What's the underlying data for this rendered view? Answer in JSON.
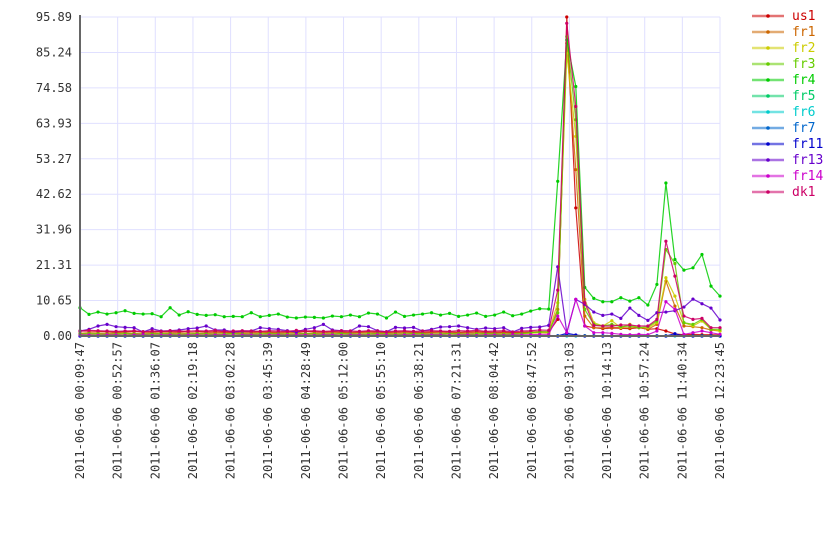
{
  "chart_data": {
    "type": "line",
    "title": "",
    "xlabel": "",
    "ylabel": "",
    "ylim": [
      0,
      95.89
    ],
    "grid": true,
    "legend_position": "right",
    "y_ticks": [
      "0.00",
      "10.65",
      "21.31",
      "31.96",
      "42.62",
      "53.27",
      "63.93",
      "74.58",
      "85.24",
      "95.89"
    ],
    "x_ticks": [
      "2011-06-06 00:09:47",
      "2011-06-06 00:52:57",
      "2011-06-06 01:36:07",
      "2011-06-06 02:19:18",
      "2011-06-06 03:02:28",
      "2011-06-06 03:45:39",
      "2011-06-06 04:28:49",
      "2011-06-06 05:12:00",
      "2011-06-06 05:55:10",
      "2011-06-06 06:38:21",
      "2011-06-06 07:21:31",
      "2011-06-06 08:04:42",
      "2011-06-06 08:47:52",
      "2011-06-06 09:31:03",
      "2011-06-06 10:14:13",
      "2011-06-06 10:57:24",
      "2011-06-06 11:40:34",
      "2011-06-06 12:23:45"
    ],
    "series": [
      {
        "name": "us1",
        "color": "#cc0000",
        "values": [
          1.5,
          1.5,
          1.4,
          1.3,
          1.2,
          1.3,
          1.4,
          1.3,
          1.2,
          1.4,
          1.3,
          1.2,
          1.5,
          1.4,
          1.2,
          1.3,
          1.2,
          1.1,
          1.3,
          1.2,
          1.3,
          1.2,
          1.1,
          1.3,
          1.2,
          1.4,
          1.3,
          1.2,
          1.3,
          1.2,
          1.1,
          1.2,
          1.3,
          1.2,
          1.1,
          1.2,
          1.3,
          1.2,
          1.1,
          1.2,
          1.3,
          1.2,
          1.1,
          1.2,
          1.3,
          1.2,
          1.1,
          1.2,
          1.0,
          1.1,
          1.2,
          1.3,
          1.2,
          5,
          95.89,
          38.5,
          3,
          2.5,
          2.2,
          2.4,
          2.3,
          2.2,
          2.5,
          2,
          2.2,
          1.5,
          0.6,
          0.4,
          0.5,
          0.4,
          0.4,
          0.3
        ]
      },
      {
        "name": "fr1",
        "color": "#cc6600",
        "values": [
          0.8,
          1,
          0.9,
          0.8,
          0.9,
          1,
          0.8,
          0.9,
          0.8,
          1,
          0.9,
          0.8,
          1,
          0.9,
          0.8,
          0.9,
          1,
          0.8,
          0.9,
          0.8,
          1,
          0.9,
          0.8,
          0.9,
          1,
          0.8,
          0.9,
          0.8,
          1,
          0.9,
          0.8,
          0.9,
          1,
          0.8,
          0.9,
          0.8,
          1,
          0.9,
          0.8,
          0.9,
          1,
          0.8,
          0.9,
          0.8,
          1,
          0.9,
          0.8,
          0.9,
          0.8,
          1,
          1,
          1.2,
          1.1,
          8,
          88,
          50,
          6,
          2.5,
          2.4,
          2.6,
          2.5,
          2.4,
          2.6,
          2,
          3.5,
          16.5,
          9,
          3,
          2.8,
          2.5,
          1.8,
          1.5
        ]
      },
      {
        "name": "fr2",
        "color": "#cccc00",
        "values": [
          0.5,
          0.6,
          0.5,
          0.4,
          0.5,
          0.6,
          0.5,
          0.4,
          0.5,
          0.6,
          0.5,
          0.4,
          0.5,
          0.6,
          0.5,
          0.4,
          0.5,
          0.6,
          0.5,
          0.4,
          0.5,
          0.6,
          0.5,
          0.4,
          0.5,
          0.6,
          0.5,
          0.4,
          0.5,
          0.6,
          0.5,
          0.4,
          0.5,
          0.6,
          0.5,
          0.4,
          0.5,
          0.6,
          0.5,
          0.4,
          0.5,
          0.6,
          0.5,
          0.4,
          0.5,
          0.6,
          0.5,
          0.4,
          0.5,
          0.6,
          0.8,
          1,
          0.9,
          10,
          85,
          60,
          11,
          4,
          3,
          4.6,
          2.5,
          3.5,
          2.5,
          2.5,
          4,
          17.5,
          12,
          4,
          3,
          4.5,
          2,
          1.5
        ]
      },
      {
        "name": "fr3",
        "color": "#66cc00",
        "values": [
          0.6,
          0.7,
          0.6,
          0.5,
          0.6,
          0.7,
          0.6,
          0.5,
          0.6,
          0.7,
          0.6,
          0.5,
          0.6,
          0.7,
          0.6,
          0.5,
          0.6,
          0.7,
          0.6,
          0.5,
          0.6,
          0.7,
          0.6,
          0.5,
          0.6,
          0.7,
          0.6,
          0.5,
          0.6,
          0.7,
          0.6,
          0.5,
          0.6,
          0.7,
          0.6,
          0.5,
          0.6,
          0.7,
          0.6,
          0.5,
          0.6,
          0.7,
          0.6,
          0.5,
          0.6,
          0.7,
          0.6,
          0.5,
          0.6,
          0.7,
          1,
          1.2,
          1.3,
          7,
          90,
          65,
          8,
          3.5,
          3,
          3.5,
          2.8,
          3,
          2.5,
          2.8,
          4.5,
          26,
          21.8,
          4,
          3.5,
          5,
          2,
          2
        ]
      },
      {
        "name": "fr4",
        "color": "#00cc00",
        "values": [
          8.5,
          6.5,
          7.2,
          6.6,
          7,
          7.6,
          6.8,
          6.6,
          6.7,
          5.8,
          8.5,
          6.3,
          7.3,
          6.5,
          6.2,
          6.4,
          5.8,
          5.9,
          5.8,
          7,
          5.8,
          6.2,
          6.6,
          5.7,
          5.4,
          5.7,
          5.6,
          5.4,
          6,
          5.8,
          6.3,
          5.8,
          6.9,
          6.6,
          5.4,
          7.2,
          5.9,
          6.3,
          6.6,
          7,
          6.3,
          6.8,
          5.9,
          6.3,
          6.9,
          5.9,
          6.3,
          7.2,
          6.1,
          6.6,
          7.5,
          8.2,
          8.1,
          46.5,
          89,
          75,
          14.6,
          11.3,
          10.3,
          10.3,
          11.5,
          10.5,
          11.5,
          9.3,
          15.5,
          46,
          23,
          19.8,
          20.5,
          24.5,
          15,
          12
        ]
      },
      {
        "name": "fr5",
        "color": "#00cc66",
        "values": [
          0.1,
          0.1,
          0.1,
          0.1,
          0.1,
          0.1,
          0.1,
          0.1,
          0.1,
          0.1,
          0.1,
          0.1,
          0.1,
          0.1,
          0.1,
          0.1,
          0.1,
          0.1,
          0.1,
          0.1,
          0.1,
          0.1,
          0.1,
          0.1,
          0.1,
          0.1,
          0.1,
          0.1,
          0.1,
          0.1,
          0.1,
          0.1,
          0.1,
          0.1,
          0.1,
          0.1,
          0.1,
          0.1,
          0.1,
          0.1,
          0.1,
          0.1,
          0.1,
          0.1,
          0.1,
          0.1,
          0.1,
          0.1,
          0.1,
          0.1,
          0.1,
          0.1,
          0.1,
          0.1,
          0.1,
          0.1,
          0.1,
          0.1,
          0.1,
          0.1,
          0.1,
          0.1,
          0.1,
          0.1,
          0.1,
          0.1,
          0.1,
          0.1,
          0.1,
          0.1,
          0.1,
          0.1
        ]
      },
      {
        "name": "fr6",
        "color": "#00cccc",
        "values": [
          0,
          0,
          0,
          0,
          0,
          0,
          0,
          0,
          0,
          0,
          0,
          0,
          0,
          0,
          0,
          0,
          0,
          0,
          0,
          0,
          0,
          0,
          0,
          0,
          0,
          0,
          0,
          0,
          0,
          0,
          0,
          0,
          0,
          0,
          0,
          0,
          0,
          0,
          0,
          0,
          0,
          0,
          0,
          0,
          0,
          0,
          0,
          0,
          0,
          0,
          0,
          0,
          0,
          0,
          0,
          0,
          0,
          0,
          0,
          0,
          0,
          0,
          0,
          0,
          0,
          0,
          0,
          0,
          0,
          0,
          0,
          0
        ]
      },
      {
        "name": "fr7",
        "color": "#0066cc",
        "values": [
          0,
          0,
          0,
          0,
          0,
          0,
          0,
          0,
          0,
          0,
          0,
          0,
          0,
          0,
          0,
          0,
          0,
          0,
          0,
          0,
          0,
          0,
          0,
          0,
          0,
          0,
          0,
          0,
          0,
          0,
          0,
          0,
          0,
          0,
          0,
          0,
          0,
          0,
          0,
          0,
          0,
          0,
          0,
          0,
          0,
          0,
          0,
          0,
          0,
          0,
          0,
          0,
          0,
          0,
          0.3,
          0.1,
          0,
          0,
          0,
          0,
          0,
          0,
          0,
          0,
          0,
          0,
          0.2,
          0,
          0,
          0,
          0,
          0
        ]
      },
      {
        "name": "fr11",
        "color": "#0000cc",
        "values": [
          0,
          0,
          0,
          0,
          0,
          0,
          0,
          0,
          0,
          0,
          0,
          0,
          0,
          0,
          0,
          0,
          0,
          0,
          0,
          0,
          0,
          0,
          0,
          0,
          0,
          0,
          0,
          0,
          0,
          0,
          0,
          0,
          0,
          0,
          0,
          0,
          0,
          0,
          0,
          0,
          0,
          0,
          0,
          0,
          0,
          0,
          0,
          0,
          0,
          0,
          0,
          0,
          0,
          0,
          0.8,
          0.3,
          0,
          0,
          0,
          0,
          0,
          0,
          0,
          0,
          0,
          0,
          0.7,
          0,
          0,
          0,
          0,
          0
        ]
      },
      {
        "name": "fr13",
        "color": "#6600cc",
        "values": [
          1.5,
          2,
          3,
          3.5,
          2.8,
          2.6,
          2.5,
          1.2,
          2.2,
          1.5,
          1.6,
          1.8,
          2.2,
          2.4,
          3,
          1.8,
          1.8,
          1.2,
          1.5,
          1.5,
          2.5,
          2.2,
          2,
          1.6,
          1.2,
          2,
          2.5,
          3.5,
          1.8,
          1.6,
          1.5,
          3,
          2.8,
          1.6,
          1.3,
          2.6,
          2.4,
          2.6,
          1.5,
          2,
          2.7,
          2.8,
          3,
          2.5,
          2,
          2.4,
          2.2,
          2.5,
          1.2,
          2.3,
          2.6,
          2.7,
          3.2,
          20.8,
          1,
          11,
          9.5,
          7.2,
          6.2,
          6.6,
          5.3,
          8.4,
          6.2,
          4.7,
          7,
          7.2,
          7.6,
          8.7,
          11.1,
          9.7,
          8.4,
          4.8
        ]
      },
      {
        "name": "fr14",
        "color": "#cc00cc",
        "values": [
          0.3,
          0.3,
          0.2,
          0.3,
          0.3,
          0.2,
          0.3,
          0.3,
          0.2,
          0.3,
          0.3,
          0.2,
          0.3,
          0.3,
          0.2,
          0.3,
          0.3,
          0.2,
          0.3,
          0.3,
          0.2,
          0.3,
          0.3,
          0.2,
          0.3,
          0.3,
          0.2,
          0.3,
          0.3,
          0.2,
          0.3,
          0.3,
          0.2,
          0.3,
          0.3,
          0.2,
          0.3,
          0.3,
          0.2,
          0.3,
          0.3,
          0.2,
          0.3,
          0.3,
          0.2,
          0.3,
          0.3,
          0.2,
          0.3,
          0.3,
          0.4,
          0.5,
          0.5,
          6,
          1,
          11,
          3,
          1,
          1,
          0.8,
          0.5,
          0.4,
          0.5,
          0.4,
          1.5,
          10.3,
          8,
          0.5,
          1,
          1.5,
          1,
          0.5
        ]
      },
      {
        "name": "dk1",
        "color": "#cc0066",
        "values": [
          1.5,
          1.7,
          1.6,
          1.5,
          1.4,
          1.5,
          1.6,
          1.3,
          1.5,
          1.4,
          1.6,
          1.5,
          1.4,
          1.6,
          1.5,
          1.7,
          1.4,
          1.5,
          1.6,
          1.5,
          1.4,
          1.6,
          1.5,
          1.4,
          1.7,
          1.5,
          1.6,
          1.4,
          1.5,
          1.6,
          1.5,
          1.4,
          1.6,
          1.5,
          1.3,
          1.5,
          1.6,
          1.4,
          1.5,
          1.6,
          1.5,
          1.4,
          1.6,
          1.5,
          1.7,
          1.4,
          1.5,
          1.6,
          1.2,
          1.5,
          1.6,
          1.8,
          1.7,
          13.8,
          94,
          69,
          10,
          3.2,
          3,
          3,
          3.3,
          3.3,
          3,
          3,
          5,
          28.5,
          18,
          6,
          5,
          5.3,
          2.5,
          2.5
        ]
      }
    ]
  }
}
